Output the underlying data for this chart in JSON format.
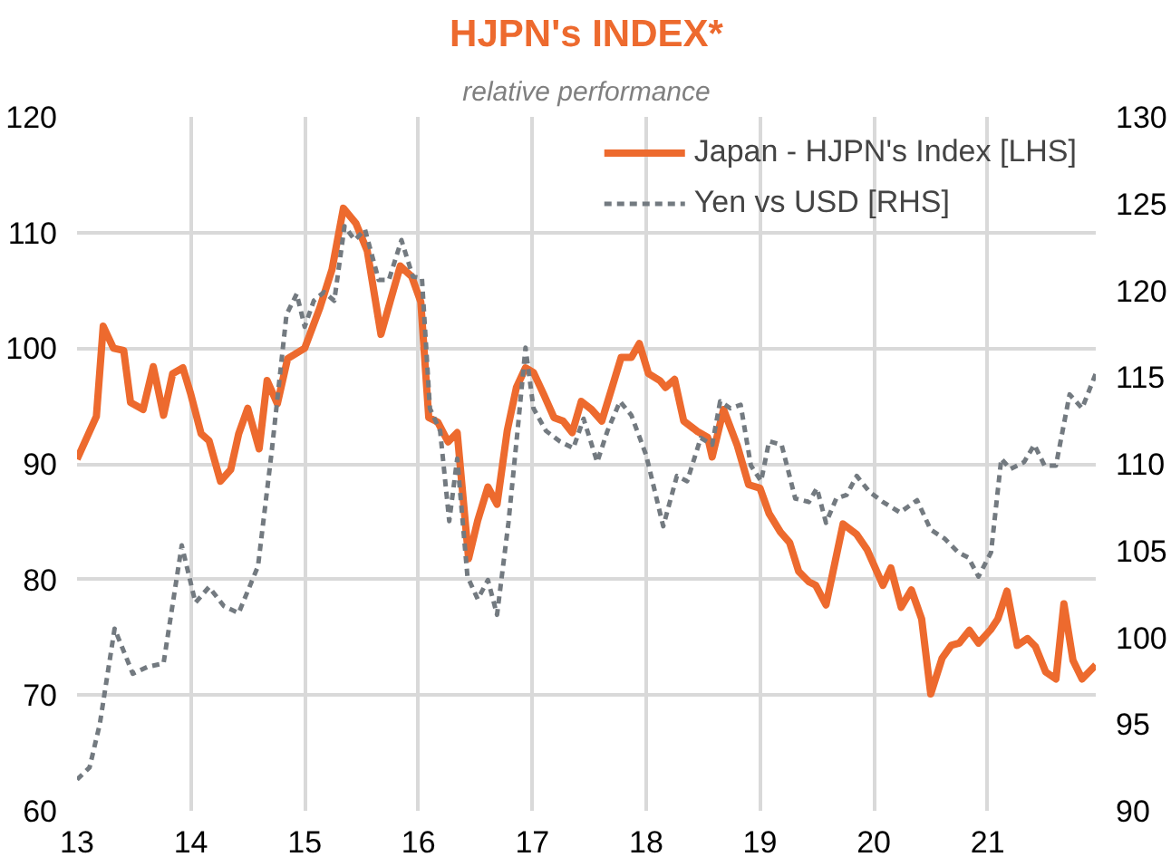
{
  "chart_data": {
    "type": "line",
    "title": "HJPN's INDEX*",
    "subtitle": "relative performance",
    "xlim": [
      13,
      21.95
    ],
    "xticks": [
      13,
      14,
      15,
      16,
      17,
      18,
      19,
      20,
      21
    ],
    "ylim": [
      60,
      120
    ],
    "yticks": [
      60,
      70,
      80,
      90,
      100,
      110,
      120
    ],
    "y2lim": [
      90,
      130
    ],
    "y2ticks": [
      90,
      95,
      100,
      105,
      110,
      115,
      120,
      125,
      130
    ],
    "grid": true,
    "legend": "top right",
    "series": [
      {
        "name": "Japan - HJPN's Index [LHS]",
        "color": "#ed6a2e",
        "line_style": "solid",
        "x": [
          13.0,
          13.17,
          13.23,
          13.32,
          13.41,
          13.47,
          13.58,
          13.67,
          13.76,
          13.84,
          13.93,
          14.0,
          14.09,
          14.16,
          14.26,
          14.35,
          14.42,
          14.5,
          14.6,
          14.67,
          14.76,
          14.85,
          15.0,
          15.13,
          15.24,
          15.34,
          15.45,
          15.55,
          15.67,
          15.75,
          15.84,
          15.94,
          16.02,
          16.09,
          16.17,
          16.26,
          16.34,
          16.44,
          16.52,
          16.61,
          16.69,
          16.78,
          16.86,
          16.94,
          17.01,
          17.1,
          17.19,
          17.27,
          17.35,
          17.43,
          17.52,
          17.61,
          17.7,
          17.78,
          17.87,
          17.94,
          18.02,
          18.12,
          18.17,
          18.25,
          18.33,
          18.45,
          18.54,
          18.58,
          18.68,
          18.8,
          18.9,
          19.0,
          19.08,
          19.18,
          19.26,
          19.34,
          19.43,
          19.49,
          19.58,
          19.73,
          19.85,
          19.94,
          20.08,
          20.15,
          20.24,
          20.33,
          20.42,
          20.5,
          20.6,
          20.68,
          20.75,
          20.84,
          20.92,
          21.03,
          21.09,
          21.17,
          21.26,
          21.35,
          21.42,
          21.51,
          21.6,
          21.67,
          21.75,
          21.83,
          21.95
        ],
        "values": [
          90.4,
          94.1,
          101.9,
          100,
          99.8,
          95.3,
          94.7,
          98.4,
          94.2,
          97.8,
          98.3,
          96,
          92.6,
          92,
          88.5,
          89.5,
          92.6,
          94.8,
          91.3,
          97.2,
          95.2,
          99.1,
          100,
          103.4,
          106.8,
          112.1,
          110.8,
          108.4,
          101.2,
          104,
          107.1,
          106.2,
          104,
          94,
          93.6,
          91.9,
          92.7,
          81.8,
          85.1,
          88,
          86.5,
          92.9,
          96.6,
          98.3,
          97.9,
          96,
          94,
          93.7,
          92.7,
          95.4,
          94.7,
          93.7,
          96.6,
          99.2,
          99.2,
          100.4,
          97.8,
          97.2,
          96.6,
          97.3,
          93.7,
          92.8,
          92.3,
          90.6,
          94.7,
          91.6,
          88.2,
          87.9,
          85.7,
          84.1,
          83.2,
          80.7,
          79.8,
          79.5,
          77.8,
          84.8,
          83.9,
          82.6,
          79.5,
          81,
          77.6,
          79.1,
          76.6,
          70.1,
          73.2,
          74.3,
          74.5,
          75.6,
          74.5,
          75.7,
          76.6,
          79,
          74.3,
          74.9,
          74.2,
          72,
          71.4,
          77.9,
          73,
          71.4,
          72.6
        ]
      },
      {
        "name": "Yen vs USD [RHS]",
        "color": "#737a80",
        "line_style": "dashed",
        "axis": "y2",
        "x": [
          13.0,
          13.11,
          13.2,
          13.33,
          13.49,
          13.62,
          13.76,
          13.92,
          14.04,
          14.16,
          14.29,
          14.42,
          14.59,
          14.71,
          14.84,
          14.93,
          15.0,
          15.08,
          15.17,
          15.26,
          15.35,
          15.44,
          15.53,
          15.65,
          15.74,
          15.85,
          15.95,
          16.03,
          16.1,
          16.19,
          16.27,
          16.34,
          16.43,
          16.52,
          16.61,
          16.69,
          16.79,
          16.87,
          16.94,
          17.01,
          17.12,
          17.24,
          17.36,
          17.45,
          17.57,
          17.66,
          17.77,
          17.87,
          18.0,
          18.15,
          18.27,
          18.36,
          18.48,
          18.58,
          18.65,
          18.74,
          18.83,
          18.92,
          19.01,
          19.08,
          19.19,
          19.31,
          19.43,
          19.5,
          19.58,
          19.67,
          19.76,
          19.85,
          19.96,
          20.08,
          20.23,
          20.38,
          20.5,
          20.62,
          20.74,
          20.83,
          20.92,
          21.03,
          21.12,
          21.2,
          21.32,
          21.41,
          21.5,
          21.6,
          21.72,
          21.83,
          21.95
        ],
        "values": [
          91.8,
          92.5,
          95,
          100.5,
          97.9,
          98.3,
          98.5,
          105.3,
          102,
          102.9,
          101.8,
          101.4,
          104.1,
          110.7,
          118.6,
          119.8,
          117.9,
          119.4,
          119.9,
          119.4,
          123.7,
          122.9,
          123.5,
          120.6,
          120.6,
          122.9,
          120.8,
          120.7,
          113.2,
          111.9,
          106.7,
          110.3,
          103.5,
          102.2,
          103.3,
          101.3,
          106.6,
          111.9,
          116.7,
          113.2,
          111.9,
          111.3,
          110.9,
          112.6,
          110.1,
          111.9,
          113.6,
          112.8,
          110.5,
          106.4,
          109.3,
          109,
          111.5,
          111.1,
          113.6,
          113.2,
          113.4,
          109.9,
          109,
          111.3,
          111.1,
          108,
          107.8,
          108.6,
          106.6,
          108,
          108.2,
          109.3,
          108.4,
          107.8,
          107.2,
          107.9,
          106.2,
          105.7,
          104.9,
          104.6,
          103.5,
          104.9,
          110.3,
          109.7,
          110.1,
          111.1,
          109.9,
          109.9,
          114,
          113.2,
          115.2
        ]
      }
    ]
  }
}
